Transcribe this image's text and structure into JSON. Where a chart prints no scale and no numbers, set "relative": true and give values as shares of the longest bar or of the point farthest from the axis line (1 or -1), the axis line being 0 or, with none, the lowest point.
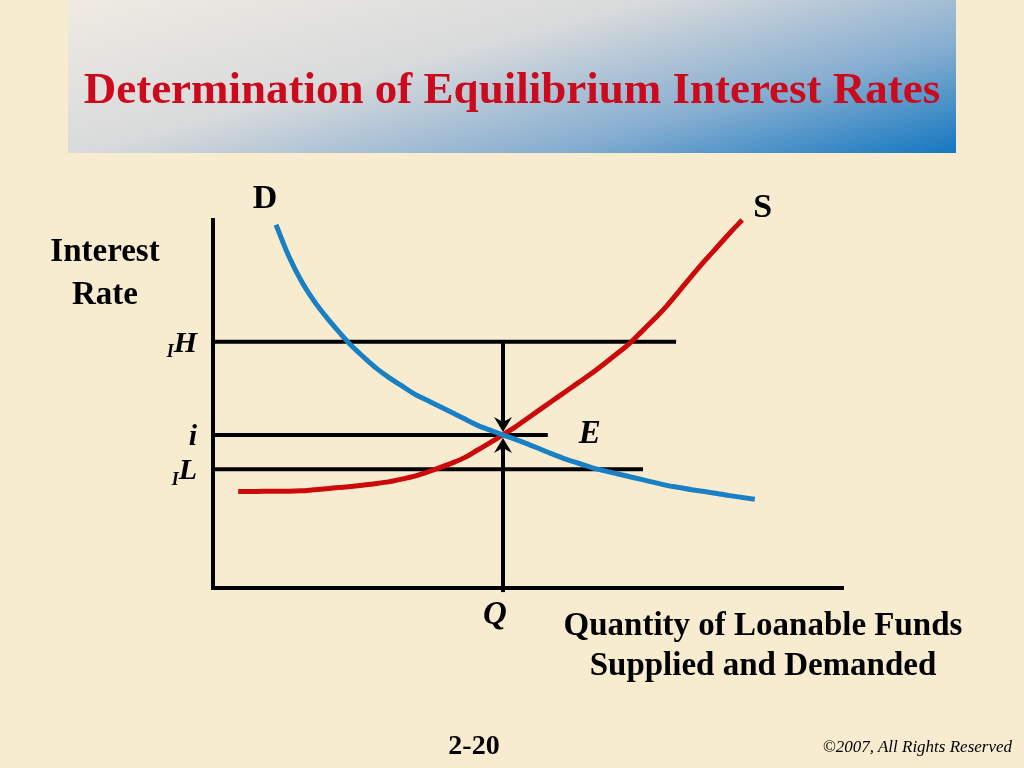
{
  "chart_data": {
    "type": "line",
    "title": "Determination of Equilibrium Interest Rates",
    "xlabel": "Quantity of Loanable Funds Supplied and Demanded",
    "ylabel": "Interest Rate",
    "relative": true,
    "categories": [
      null,
      null,
      null,
      null,
      null,
      null,
      null,
      null,
      null,
      null,
      null,
      null,
      null,
      null,
      null,
      null,
      null,
      null,
      null,
      null,
      null,
      null,
      null,
      null,
      null,
      null,
      null,
      null,
      null,
      null,
      null,
      null,
      null,
      null,
      null,
      null,
      null,
      null,
      null,
      null,
      null,
      null,
      null,
      null,
      null,
      null,
      null,
      null,
      null,
      null,
      null
    ],
    "series": [
      {
        "name": "D",
        "color": "#1a80c4",
        "values": [
          null,
          null,
          null,
          null,
          null,
          0.987,
          0.903,
          0.835,
          0.781,
          0.736,
          0.696,
          0.658,
          0.626,
          0.596,
          0.571,
          0.549,
          0.527,
          0.51,
          0.493,
          0.476,
          0.459,
          0.442,
          0.429,
          0.416,
          0.404,
          0.391,
          0.377,
          0.363,
          0.35,
          0.339,
          0.328,
          0.319,
          0.311,
          0.303,
          0.295,
          0.287,
          0.279,
          0.273,
          0.267,
          0.262,
          0.257,
          0.251,
          0.246,
          0.241,
          null,
          null,
          null,
          null,
          null,
          null,
          null
        ]
      },
      {
        "name": "S",
        "color": "#cc0a0a",
        "values": [
          null,
          null,
          0.262,
          0.262,
          0.263,
          0.263,
          0.263,
          0.264,
          0.267,
          0.27,
          0.273,
          0.276,
          0.28,
          0.284,
          0.289,
          0.296,
          0.304,
          0.315,
          0.327,
          0.34,
          0.355,
          0.375,
          0.395,
          0.416,
          0.438,
          0.462,
          0.486,
          0.51,
          0.534,
          0.558,
          0.582,
          0.608,
          0.635,
          0.663,
          0.696,
          0.73,
          0.766,
          0.807,
          0.848,
          0.888,
          0.926,
          0.964,
          1.0,
          null,
          null,
          null,
          null,
          null,
          null,
          null,
          null
        ]
      }
    ],
    "ref_lines": [
      {
        "axis": "y",
        "value": 0.669,
        "label": "$_{I}$H",
        "color": "#000000"
      },
      {
        "axis": "y",
        "value": 0.416,
        "label": "i",
        "color": "#000000"
      },
      {
        "axis": "y",
        "value": 0.323,
        "label": "$_{I}$L",
        "color": "#000000"
      }
    ],
    "annotations": [
      "E",
      "Q",
      "2-20",
      "©2007, All Rights Reserved"
    ]
  }
}
